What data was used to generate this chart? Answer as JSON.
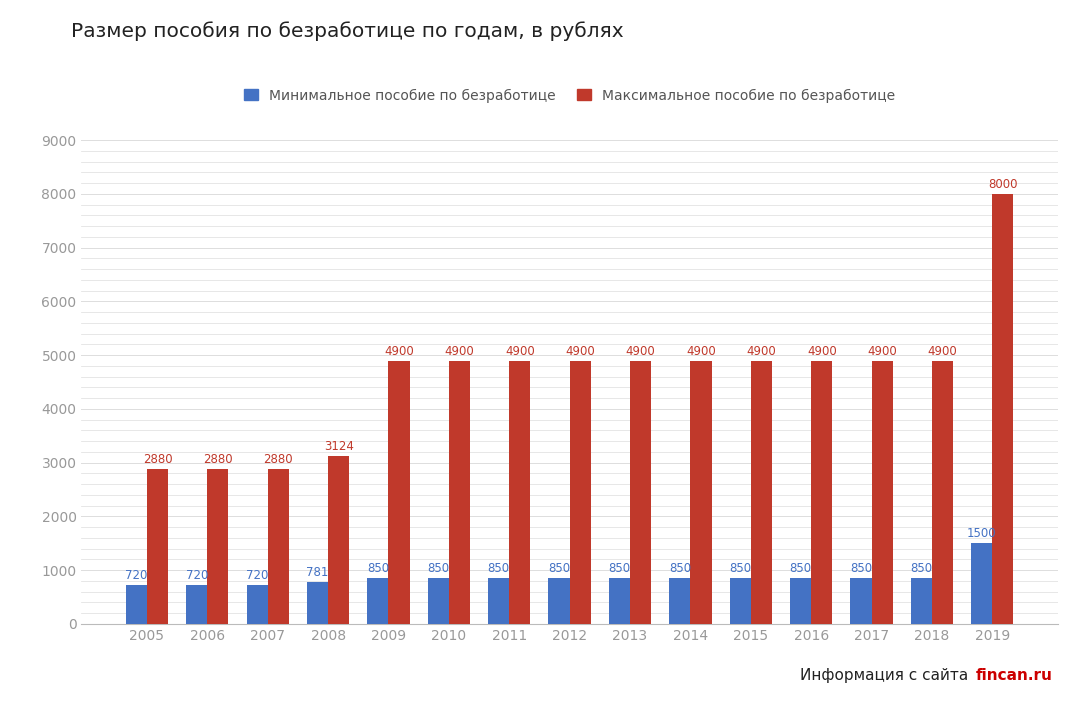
{
  "title": "Размер пособия по безработице по годам, в рублях",
  "years": [
    2005,
    2006,
    2007,
    2008,
    2009,
    2010,
    2011,
    2012,
    2013,
    2014,
    2015,
    2016,
    2017,
    2018,
    2019
  ],
  "min_values": [
    720,
    720,
    720,
    781,
    850,
    850,
    850,
    850,
    850,
    850,
    850,
    850,
    850,
    850,
    1500
  ],
  "max_values": [
    2880,
    2880,
    2880,
    3124,
    4900,
    4900,
    4900,
    4900,
    4900,
    4900,
    4900,
    4900,
    4900,
    4900,
    8000
  ],
  "min_color": "#4472C4",
  "max_color": "#C0392B",
  "legend_min": "Минимальное пособие по безработице",
  "legend_max": "Максимальное пособие по безработице",
  "ylim": [
    0,
    9000
  ],
  "yticks_major": [
    0,
    1000,
    2000,
    3000,
    4000,
    5000,
    6000,
    7000,
    8000,
    9000
  ],
  "background_color": "#ffffff",
  "grid_color": "#dddddd",
  "bar_width": 0.35,
  "footnote_black": "Информация с сайта ",
  "footnote_red": "fincan.ru",
  "label_fontsize": 8.5,
  "tick_color": "#999999"
}
